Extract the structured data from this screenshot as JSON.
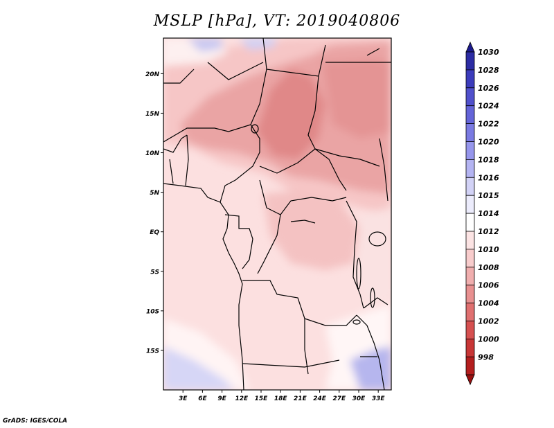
{
  "title": "MSLP [hPa], VT: 2019040806",
  "credit": "GrADS: IGES/COLA",
  "map": {
    "lat_ticks": [
      "20N",
      "15N",
      "10N",
      "5N",
      "EQ",
      "5S",
      "10S",
      "15S"
    ],
    "lon_ticks": [
      "3E",
      "6E",
      "9E",
      "12E",
      "15E",
      "18E",
      "21E",
      "24E",
      "27E",
      "30E",
      "33E"
    ],
    "lat_range": [
      -20,
      24.5
    ],
    "lon_range": [
      0,
      35
    ]
  },
  "colorbar": {
    "labels": [
      "1030",
      "1028",
      "1026",
      "1024",
      "1022",
      "1020",
      "1018",
      "1016",
      "1015",
      "1014",
      "1012",
      "1010",
      "1008",
      "1006",
      "1004",
      "1002",
      "1000",
      "998"
    ],
    "colors": [
      "#1c1a8c",
      "#2c2ca4",
      "#3c3cbc",
      "#5050cc",
      "#6464d8",
      "#7a7ae2",
      "#9696ec",
      "#b4b4f2",
      "#d2d2f6",
      "#ececfc",
      "#ffffff",
      "#fce4e4",
      "#f8cccc",
      "#f0aeae",
      "#e89090",
      "#e07070",
      "#d65050",
      "#c83636",
      "#b41e1e",
      "#9a1010"
    ]
  }
}
